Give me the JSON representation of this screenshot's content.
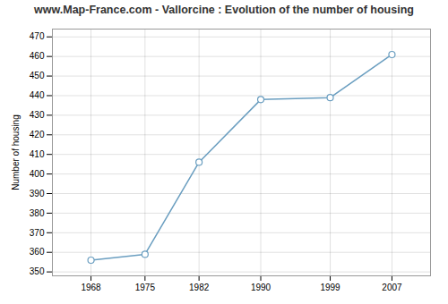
{
  "chart_data": {
    "type": "line",
    "title": "www.Map-France.com - Vallorcine : Evolution of the number of housing",
    "ylabel": "Number of housing",
    "x": [
      1968,
      1975,
      1982,
      1990,
      1999,
      2007
    ],
    "values": [
      356,
      359,
      406,
      438,
      439,
      461
    ],
    "color": "#6a9ec0",
    "marker": "circle",
    "xlim": [
      1963,
      2012
    ],
    "xticks": [
      1968,
      1975,
      1982,
      1990,
      1999,
      2007
    ],
    "ylim": [
      348,
      474
    ],
    "yticks": [
      350,
      360,
      370,
      380,
      390,
      400,
      410,
      420,
      430,
      440,
      450,
      460,
      470
    ],
    "grid": true
  }
}
